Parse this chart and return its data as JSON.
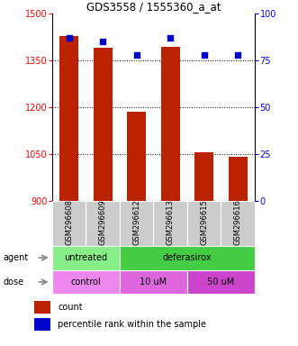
{
  "title": "GDS3558 / 1555360_a_at",
  "samples": [
    "GSM296608",
    "GSM296609",
    "GSM296612",
    "GSM296613",
    "GSM296615",
    "GSM296616"
  ],
  "counts": [
    1430,
    1390,
    1185,
    1395,
    1055,
    1040
  ],
  "percentiles": [
    87,
    85,
    78,
    87,
    78,
    78
  ],
  "ylim_left": [
    900,
    1500
  ],
  "yticks_left": [
    900,
    1050,
    1200,
    1350,
    1500
  ],
  "ylim_right": [
    0,
    100
  ],
  "yticks_right": [
    0,
    25,
    50,
    75,
    100
  ],
  "bar_color": "#bb2200",
  "dot_color": "#0000cc",
  "bar_width": 0.55,
  "agent_untreated_color": "#88ee88",
  "agent_deferasirox_color": "#44cc44",
  "dose_control_color": "#ee88ee",
  "dose_10um_color": "#dd66dd",
  "dose_50um_color": "#cc44cc",
  "legend_count_label": "count",
  "legend_percentile_label": "percentile rank within the sample",
  "agent_label": "agent",
  "dose_label": "dose"
}
